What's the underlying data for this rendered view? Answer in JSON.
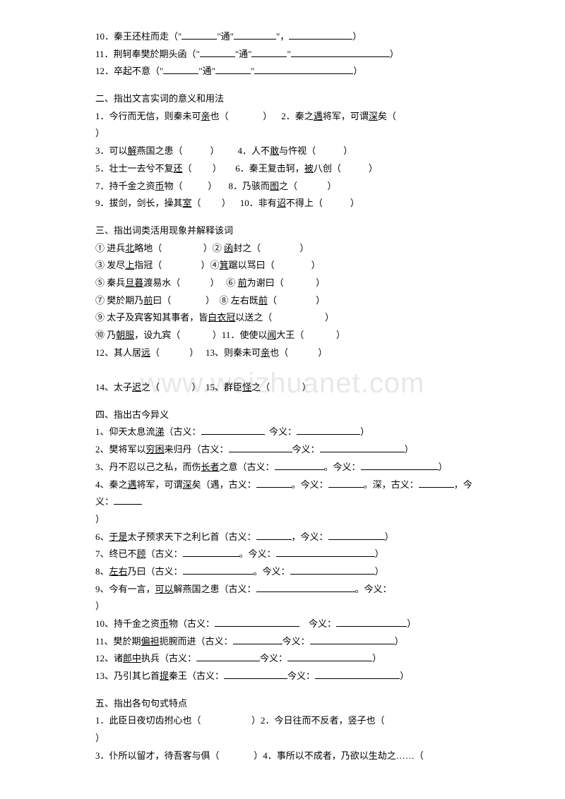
{
  "watermark": "www.weizhuanet.com",
  "s1": {
    "l10": "10．秦王还柱而走（\"",
    "l10b": "\"通\"",
    "l10c": "\"，",
    "l10d": "）",
    "l11": "11．荆轲奉樊於期头函（\"",
    "l11b": "\"通\"",
    "l11c": "\"",
    "l11d": "）",
    "l12": "12．卒起不意（\"",
    "l12b": "\"通\"",
    "l12c": "\"",
    "l12d": "）"
  },
  "s2": {
    "head": "二、指出文言实词的意义和用法",
    "l1a": "1．今行而无信，则秦未可",
    "l1u": "亲",
    "l1b": "也（",
    "l1c": "）    2．秦之",
    "l1cu": "遇",
    "l1d": "将军，可谓",
    "l1du": "深",
    "l1e": "矣（",
    "close": "）",
    "l3a": "3．可以",
    "l3u": "解",
    "l3b": "燕国之患（",
    "l3c": "）        4．人不",
    "l3cu": "敢",
    "l3d": "与忤视（",
    "l3e": "）",
    "l5a": "5．壮士一去兮不复",
    "l5u": "还",
    "l5b": "（",
    "l5c": "）      6．秦王复击轲，",
    "l5cu": "被",
    "l5d": "八创（",
    "l5e": "）",
    "l7a": "7．持千金之资",
    "l7u": "币",
    "l7b": "物（",
    "l7c": "）     8．乃骇而",
    "l7cu": "图",
    "l7d": "之（",
    "l7e": "）",
    "l9a": "9．拔剑，剑长，操其",
    "l9u": "室",
    "l9b": "（",
    "l9c": "）    10．非有",
    "l9cu": "诏",
    "l9d": "不得上（",
    "l9e": "）"
  },
  "s3": {
    "head": "三、指出词类活用现象并解释该词",
    "l1a": "① 进兵",
    "l1u": "北",
    "l1b": "略地（",
    "l1c": "）② ",
    "l1cu": "函",
    "l1d": "封之（",
    "l1e": "）",
    "l3a": "③ 发尽",
    "l3u": "上",
    "l3b": "指冠（",
    "l3c": "）④",
    "l3cu": "箕",
    "l3d": "踞以骂曰（",
    "l3e": "）",
    "l5a": "⑤ 秦兵",
    "l5u": "旦暮",
    "l5b": "渡易水（",
    "l5c": "）   ⑥ ",
    "l5cu": "前",
    "l5d": "为谢曰（",
    "l5e": "）",
    "l7a": "⑦ 樊於期乃",
    "l7u": "前",
    "l7b": "曰（",
    "l7c": "）  ⑧ 左右既",
    "l7cu": "前",
    "l7d": "（",
    "l7e": "）",
    "l9a": "⑨ 太子及宾客知其事者，皆",
    "l9u": "白衣冠",
    "l9b": "以送之（",
    "l9c": "）",
    "l10a": "⑩ 乃",
    "l10u": "朝服",
    "l10b": "，设九宾（",
    "l10c": "）11．使使以",
    "l10cu": "闻",
    "l10d": "大王（",
    "l10e": "）",
    "l12a": "12、其人居",
    "l12u": "远",
    "l12b": "（",
    "l12c": "）   13、则秦未可",
    "l12cu": "亲",
    "l12d": "也（",
    "l12e": "）",
    "blank": "",
    "l14a": "14、太子",
    "l14u": "迟",
    "l14b": "之（",
    "l14c": "）  15、群臣",
    "l14cu": "怪",
    "l14d": "之（",
    "l14e": "）"
  },
  "s4": {
    "head": "四、指出古今异义",
    "l1": "1、仰天太息流",
    "l1u": "涕",
    "l1b": "（古义：",
    "l1c": "  今义：",
    "l1d": "）",
    "l2": "2、樊将军以",
    "l2u": "穷困",
    "l2b": "来归丹（古义：",
    "l2c": "今义：",
    "l2d": "）",
    "l3": "3、丹不忍以己之私，而伤",
    "l3u": "长者",
    "l3b": "之意（古义：",
    "l3c": "。今义：",
    "l3d": "）",
    "l4": "4、秦之",
    "l4u": "遇",
    "l4b": "将军，可谓",
    "l4bu": "深",
    "l4c": "矣（遇，古义：",
    "l4d": "。今义：",
    "l4e": "。深，古义：",
    "l4f": "，今义：",
    "l4g": "）",
    "l6": "6、",
    "l6u": "于是",
    "l6b": "太子预求天下之利匕首（古义：",
    "l6c": "，今义：",
    "l6d": "）",
    "l7": "7、终已不",
    "l7u": "顾",
    "l7b": "（古义：",
    "l7c": "。今义：",
    "l7d": "）",
    "l8": "8、",
    "l8u": "左右",
    "l8b": "乃曰（古义：",
    "l8c": "。今义：",
    "l8d": "）",
    "l9": "9、今有一言，",
    "l9u": "可以",
    "l9b": "解燕国之患（古义：",
    "l9c": "。今义：",
    "l9d": "）",
    "l10": "10、持千金之资",
    "l10u": "币",
    "l10b": "物（古义：",
    "l10c": "    今义：",
    "l10d": "）",
    "l11": "11、樊於期",
    "l11u": "偏袒",
    "l11b": "扼腕而进（古义：",
    "l11c": "今义：",
    "l11d": "）",
    "l12": "12、诸",
    "l12u": "郎中",
    "l12b": "执兵（古义：",
    "l12c": "今义：",
    "l12d": "）",
    "l13": "13、乃引其匕首",
    "l13u": "提",
    "l13b": "秦王（古义：",
    "l13c": "今义：",
    "l13d": "）"
  },
  "s5": {
    "head": "五、指出各句句式特点",
    "l1": "1．此臣日夜切齿拊心也（",
    "l1b": "）2．今日往而不反者，竖子也（",
    "close": "）",
    "l3": "3．仆所以留才，待吾客与俱（",
    "l3b": "）4．事所以不成者，乃欲以生劫之……（"
  }
}
